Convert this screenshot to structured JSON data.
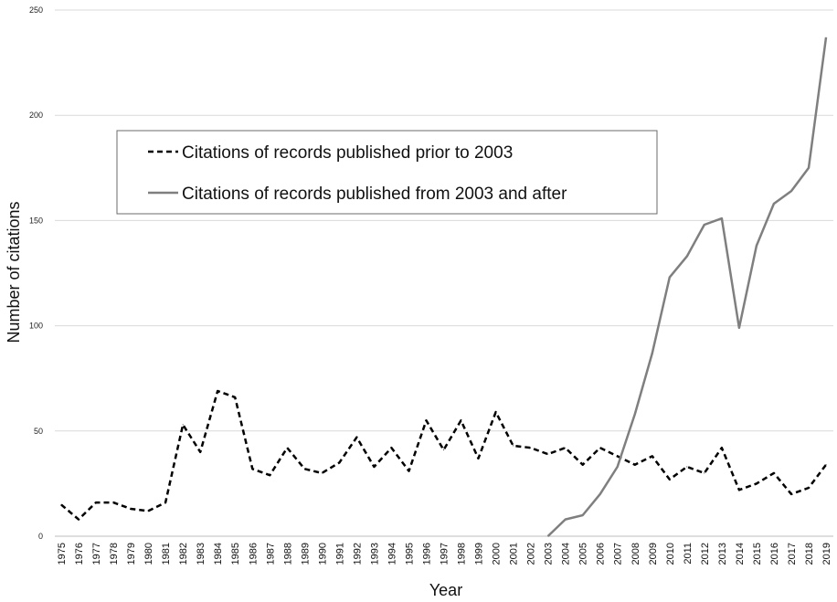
{
  "chart_data": {
    "type": "line",
    "title": "",
    "xlabel": "Year",
    "ylabel": "Number of citations",
    "ylim": [
      0,
      250
    ],
    "yticks": [
      "0",
      "50",
      "100",
      "150",
      "200",
      "250"
    ],
    "grid": "horizontal",
    "legend_position": "upper-left",
    "x": [
      1975,
      1976,
      1977,
      1978,
      1979,
      1980,
      1981,
      1982,
      1983,
      1984,
      1985,
      1986,
      1987,
      1988,
      1989,
      1990,
      1991,
      1992,
      1993,
      1994,
      1995,
      1996,
      1997,
      1998,
      1999,
      2000,
      2001,
      2002,
      2003,
      2004,
      2005,
      2006,
      2007,
      2008,
      2009,
      2010,
      2011,
      2012,
      2013,
      2014,
      2015,
      2016,
      2017,
      2018,
      2019
    ],
    "series": [
      {
        "name": "Citations of records published prior to 2003",
        "style": "dashed",
        "color": "#000000",
        "values": [
          15,
          8,
          16,
          16,
          13,
          12,
          16,
          53,
          40,
          69,
          66,
          32,
          29,
          42,
          32,
          30,
          35,
          47,
          33,
          42,
          31,
          55,
          41,
          55,
          37,
          59,
          43,
          42,
          39,
          42,
          34,
          42,
          38,
          34,
          38,
          27,
          33,
          30,
          42,
          22,
          25,
          30,
          20,
          23,
          34
        ]
      },
      {
        "name": "Citations of records published from 2003 and after",
        "style": "solid",
        "color": "#7f7f7f",
        "values": [
          null,
          null,
          null,
          null,
          null,
          null,
          null,
          null,
          null,
          null,
          null,
          null,
          null,
          null,
          null,
          null,
          null,
          null,
          null,
          null,
          null,
          null,
          null,
          null,
          null,
          null,
          null,
          null,
          0,
          8,
          10,
          20,
          33,
          58,
          87,
          123,
          133,
          148,
          151,
          99,
          138,
          158,
          164,
          175,
          237
        ]
      }
    ]
  }
}
